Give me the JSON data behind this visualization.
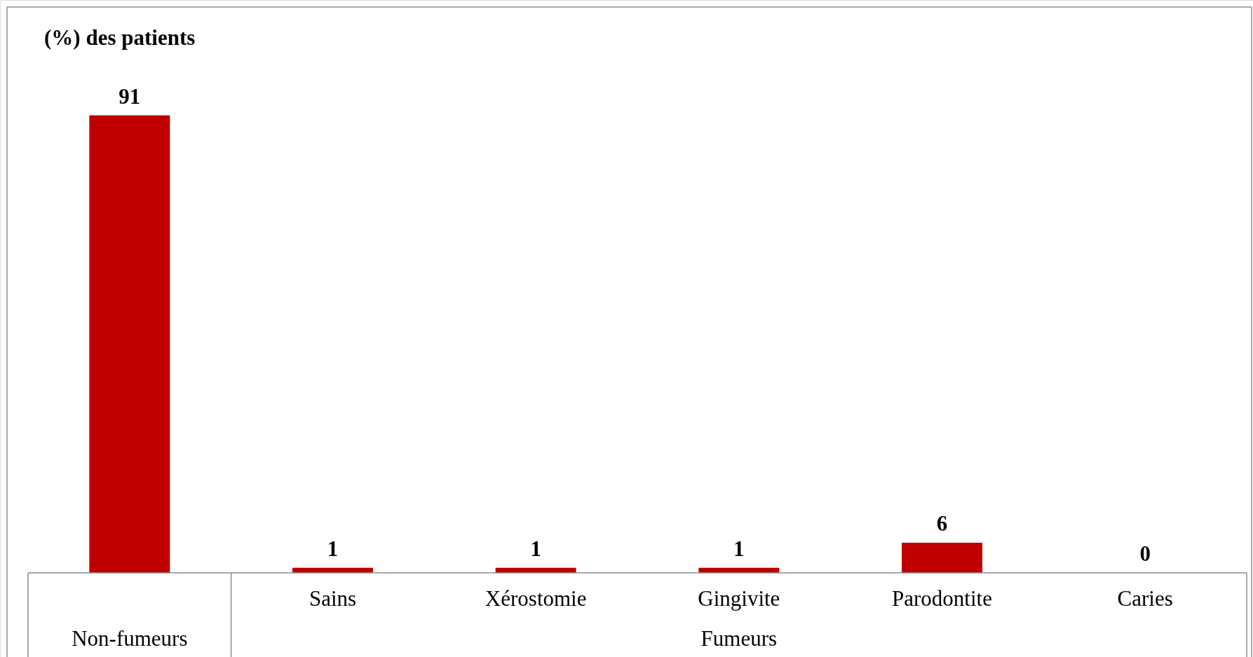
{
  "chart_data": {
    "type": "bar",
    "ylabel": "(%) des patients",
    "categories": [
      null,
      "Sains",
      "Xérostomie",
      "Gingivite",
      "Parodontite",
      "Caries"
    ],
    "values": [
      91,
      1,
      1,
      1,
      6,
      0
    ],
    "color": "#c00000",
    "data_labels": true,
    "annotations": [
      "Non-fumeurs",
      "Fumeurs"
    ]
  }
}
